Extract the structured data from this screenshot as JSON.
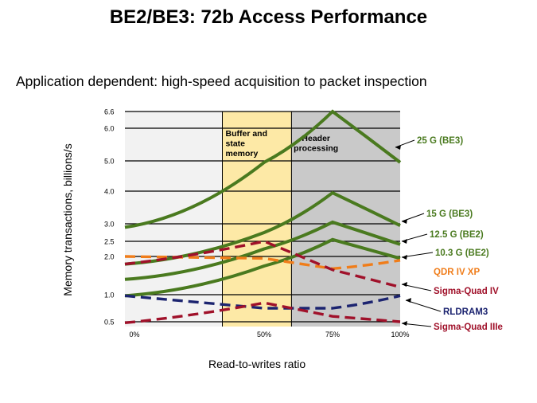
{
  "page": {
    "title": "BE2/BE3: 72b Access Performance",
    "subtitle": "Application dependent:  high-speed  acquisition to packet inspection"
  },
  "chart_data": {
    "type": "line",
    "xlabel": "Read-to-writes ratio",
    "ylabel": "Memory transactions, billions/s",
    "x_ticks": [
      "0%",
      "50%",
      "75%",
      "100%"
    ],
    "y_ticks": [
      "6.6",
      "6.0",
      "5.0",
      "4.0",
      "3.0",
      "2.5",
      "2.0",
      "1.0",
      "0.5"
    ],
    "regions": [
      {
        "label": "Buffer and state memory",
        "from": 35,
        "to": 60,
        "color": "#fde9a6"
      },
      {
        "label": "Header processing",
        "from": 60,
        "to": 100,
        "color": "#c9c9c9"
      }
    ],
    "series": [
      {
        "name": "25 G (BE3)",
        "color": "#4a7a1f",
        "dash": false,
        "points": [
          [
            0,
            2.9
          ],
          [
            50,
            4.95
          ],
          [
            75,
            6.6
          ],
          [
            100,
            4.95
          ]
        ]
      },
      {
        "name": "15 G (BE3)",
        "color": "#4a7a1f",
        "dash": false,
        "points": [
          [
            0,
            1.8
          ],
          [
            50,
            2.75
          ],
          [
            75,
            3.95
          ],
          [
            100,
            2.95
          ]
        ]
      },
      {
        "name": "12.5 G (BE2)",
        "color": "#4a7a1f",
        "dash": false,
        "points": [
          [
            0,
            1.4
          ],
          [
            50,
            2.25
          ],
          [
            75,
            3.05
          ],
          [
            100,
            2.4
          ]
        ]
      },
      {
        "name": "10.3 G (BE2)",
        "color": "#4a7a1f",
        "dash": false,
        "points": [
          [
            0,
            0.98
          ],
          [
            50,
            1.75
          ],
          [
            75,
            2.55
          ],
          [
            100,
            1.95
          ]
        ]
      },
      {
        "name": "QDR IV XP",
        "color": "#f07d1a",
        "dash": true,
        "points": [
          [
            0,
            2.0
          ],
          [
            50,
            1.95
          ],
          [
            75,
            1.68
          ],
          [
            100,
            1.9
          ]
        ]
      },
      {
        "name": "Sigma-Quad IV",
        "color": "#a0112a",
        "dash": true,
        "points": [
          [
            0,
            1.8
          ],
          [
            50,
            2.5
          ],
          [
            75,
            1.65
          ],
          [
            100,
            1.2
          ]
        ]
      },
      {
        "name": "RLDRAM3",
        "color": "#1c2470",
        "dash": true,
        "points": [
          [
            0,
            0.98
          ],
          [
            50,
            0.75
          ],
          [
            75,
            0.75
          ],
          [
            100,
            0.98
          ]
        ]
      },
      {
        "name": "Sigma-Quad IIIe",
        "color": "#a0112a",
        "dash": true,
        "points": [
          [
            0,
            0.48
          ],
          [
            50,
            0.85
          ],
          [
            75,
            0.6
          ],
          [
            100,
            0.5
          ]
        ]
      }
    ]
  }
}
